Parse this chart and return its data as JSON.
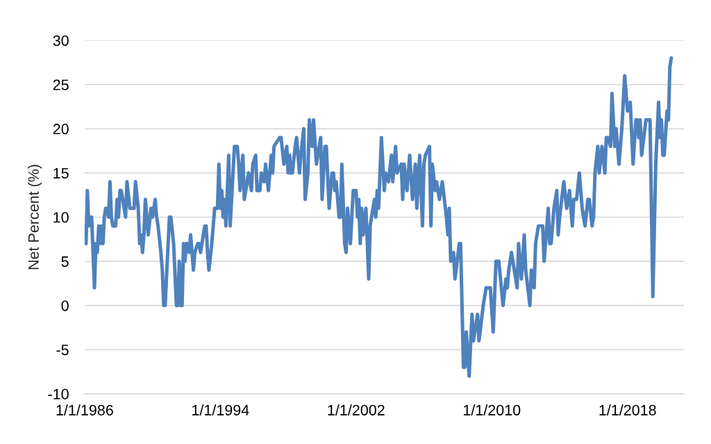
{
  "chart_data": {
    "type": "line",
    "ylabel": "Net Percent (%)",
    "color": "#4f81bd",
    "line_style": "solid",
    "x": [
      "1986-01",
      "1986-02",
      "1986-03",
      "1986-04",
      "1986-05",
      "1986-06",
      "1986-08",
      "1986-09",
      "1986-10",
      "1986-11",
      "1986-12",
      "1987-01",
      "1987-02",
      "1987-03",
      "1987-04",
      "1987-05",
      "1987-06",
      "1987-07",
      "1987-08",
      "1987-09",
      "1987-11",
      "1987-12",
      "1988-01",
      "1988-02",
      "1988-03",
      "1988-04",
      "1988-06",
      "1988-07",
      "1988-09",
      "1988-12",
      "1989-01",
      "1989-03",
      "1989-04",
      "1989-05",
      "1989-06",
      "1989-07",
      "1989-08",
      "1989-10",
      "1989-12",
      "1990-01",
      "1990-02",
      "1990-03",
      "1990-04",
      "1990-05",
      "1990-07",
      "1990-08",
      "1990-09",
      "1990-10",
      "1991-01",
      "1991-02",
      "1991-04",
      "1991-06",
      "1991-07",
      "1991-08",
      "1991-09",
      "1991-10",
      "1991-11",
      "1991-12",
      "1992-01",
      "1992-02",
      "1992-03",
      "1992-04",
      "1992-06",
      "1992-07",
      "1992-09",
      "1992-10",
      "1992-11",
      "1993-01",
      "1993-02",
      "1993-03",
      "1993-04",
      "1993-05",
      "1993-07",
      "1993-09",
      "1993-11",
      "1993-12",
      "1994-01",
      "1994-02",
      "1994-03",
      "1994-04",
      "1994-05",
      "1994-07",
      "1994-08",
      "1994-11",
      "1995-01",
      "1995-02",
      "1995-03",
      "1995-05",
      "1995-06",
      "1995-09",
      "1995-11",
      "1995-12",
      "1996-02",
      "1996-03",
      "1996-05",
      "1996-06",
      "1996-08",
      "1996-09",
      "1996-11",
      "1997-01",
      "1997-02",
      "1997-03",
      "1997-07",
      "1997-08",
      "1997-10",
      "1997-12",
      "1998-01",
      "1998-02",
      "1998-03",
      "1998-04",
      "1998-06",
      "1998-07",
      "1998-09",
      "1998-10",
      "1998-12",
      "1999-01",
      "1999-03",
      "1999-04",
      "1999-06",
      "1999-07",
      "1999-09",
      "1999-12",
      "2000-01",
      "2000-03",
      "2000-04",
      "2000-06",
      "2000-08",
      "2000-09",
      "2000-10",
      "2000-11",
      "2001-01",
      "2001-02",
      "2001-03",
      "2001-05",
      "2001-06",
      "2001-07",
      "2001-09",
      "2001-11",
      "2002-01",
      "2002-02",
      "2002-03",
      "2002-04",
      "2002-05",
      "2002-06",
      "2002-08",
      "2002-10",
      "2002-11",
      "2002-12",
      "2003-02",
      "2003-03",
      "2003-04",
      "2003-05",
      "2003-07",
      "2003-09",
      "2003-10",
      "2003-12",
      "2004-02",
      "2004-03",
      "2004-05",
      "2004-06",
      "2004-09",
      "2004-10",
      "2004-11",
      "2005-01",
      "2005-03",
      "2005-05",
      "2005-07",
      "2005-08",
      "2005-10",
      "2005-12",
      "2006-01",
      "2006-02",
      "2006-05",
      "2006-06",
      "2006-07",
      "2006-09",
      "2006-10",
      "2006-12",
      "2007-02",
      "2007-05",
      "2007-06",
      "2007-07",
      "2007-08",
      "2007-10",
      "2007-11",
      "2008-02",
      "2008-03",
      "2008-05",
      "2008-06",
      "2008-07",
      "2008-09",
      "2008-11",
      "2008-12",
      "2009-03",
      "2009-04",
      "2009-07",
      "2009-09",
      "2009-12",
      "2010-02",
      "2010-04",
      "2010-06",
      "2010-09",
      "2010-11",
      "2010-12",
      "2011-01",
      "2011-03",
      "2011-05",
      "2011-07",
      "2011-08",
      "2011-10",
      "2011-12",
      "2012-01",
      "2012-04",
      "2012-05",
      "2012-07",
      "2012-08",
      "2012-10",
      "2013-01",
      "2013-02",
      "2013-05",
      "2013-06",
      "2013-07",
      "2013-09",
      "2013-11",
      "2013-12",
      "2014-01",
      "2014-04",
      "2014-06",
      "2014-08",
      "2014-10",
      "2014-11",
      "2015-01",
      "2015-03",
      "2015-05",
      "2015-07",
      "2015-09",
      "2015-10",
      "2015-12",
      "2016-01",
      "2016-02",
      "2016-04",
      "2016-05",
      "2016-07",
      "2016-09",
      "2016-10",
      "2016-11",
      "2017-01",
      "2017-02",
      "2017-04",
      "2017-05",
      "2017-07",
      "2017-09",
      "2017-11",
      "2018-01",
      "2018-03",
      "2018-05",
      "2018-07",
      "2018-08",
      "2018-09",
      "2018-10",
      "2018-11",
      "2019-02",
      "2019-03",
      "2019-05",
      "2019-07",
      "2019-09",
      "2019-11",
      "2019-12",
      "2020-01",
      "2020-02",
      "2020-03",
      "2020-05",
      "2020-06",
      "2020-07",
      "2020-08"
    ],
    "values": [
      9,
      7,
      13,
      9,
      10,
      10,
      2,
      7,
      6,
      9,
      7,
      9,
      7,
      10,
      11,
      11,
      10,
      14,
      10,
      9,
      9,
      12,
      10,
      13,
      13,
      12,
      10,
      14,
      11,
      11,
      14,
      11,
      7,
      8,
      6,
      8,
      12,
      8,
      11,
      10,
      11,
      12,
      10,
      9,
      6,
      4,
      0,
      0,
      10,
      10,
      7,
      0,
      0,
      5,
      0,
      0,
      7,
      5,
      7,
      7,
      6,
      8,
      4,
      6,
      7,
      7,
      6,
      8,
      9,
      9,
      6,
      4,
      7,
      11,
      11,
      16,
      11,
      13,
      10,
      12,
      9,
      17,
      9,
      18,
      18,
      16,
      13,
      17,
      12,
      15,
      13,
      16,
      17,
      13,
      13,
      15,
      14,
      16,
      13,
      17,
      15,
      18,
      19,
      19,
      16,
      18,
      15,
      17,
      15,
      15,
      18,
      19,
      15,
      17,
      20,
      12,
      15,
      21,
      18,
      21,
      16,
      19,
      12,
      18,
      18,
      11,
      15,
      15,
      13,
      14,
      10,
      10,
      16,
      7,
      6,
      11,
      7,
      13,
      13,
      10,
      12,
      7,
      11,
      8,
      11,
      3,
      9,
      10,
      12,
      10,
      13,
      11,
      19,
      13,
      15,
      14,
      17,
      14,
      18,
      15,
      16,
      12,
      16,
      13,
      17,
      12,
      16,
      11,
      17,
      9,
      16,
      17,
      18,
      9,
      16,
      13,
      14,
      12,
      14,
      10,
      8,
      11,
      5,
      6,
      3,
      7,
      7,
      -7,
      -7,
      -3,
      -8,
      -1,
      -4,
      -1,
      -4,
      0,
      2,
      2,
      -3,
      5,
      5,
      0,
      3,
      2,
      4,
      6,
      4,
      2,
      7,
      3,
      8,
      4,
      0,
      4,
      2,
      7,
      9,
      9,
      5,
      11,
      7,
      7,
      11,
      13,
      8,
      10,
      14,
      11,
      13,
      9,
      12,
      12,
      15,
      11,
      9,
      12,
      12,
      9,
      10,
      15,
      18,
      15,
      18,
      15,
      19,
      19,
      18,
      24,
      18,
      20,
      16,
      20,
      26,
      22,
      23,
      16,
      21,
      21,
      19,
      21,
      17,
      21,
      21,
      21,
      1,
      16,
      23,
      19,
      21,
      17,
      17,
      22,
      21,
      27,
      28
    ],
    "xlim": [
      "1986-01",
      "2021-05"
    ],
    "xticks": [
      {
        "value": "1986-01-01",
        "label": "1/1/1986"
      },
      {
        "value": "1994-01-01",
        "label": "1/1/1994"
      },
      {
        "value": "2002-01-01",
        "label": "1/1/2002"
      },
      {
        "value": "2010-01-01",
        "label": "1/1/2010"
      },
      {
        "value": "2018-01-01",
        "label": "1/1/2018"
      }
    ],
    "ylim": [
      -10,
      30
    ],
    "yticks": [
      -10,
      -5,
      0,
      5,
      10,
      15,
      20,
      25,
      30
    ],
    "grid": "y"
  }
}
